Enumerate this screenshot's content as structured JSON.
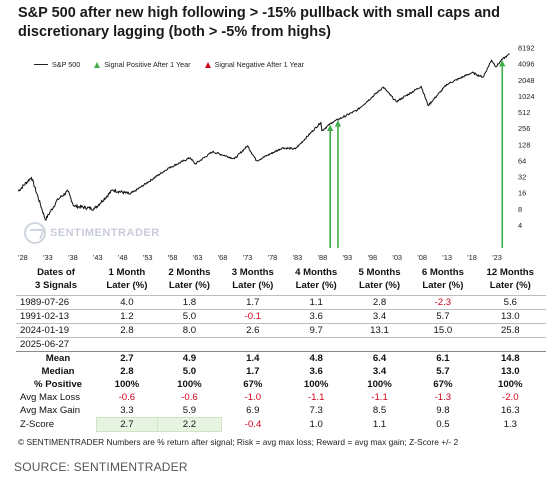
{
  "title": "S&P 500 after new high following > -15% pullback with small caps and discretionary lagging (both > -5% from highs)",
  "legend": {
    "sp500_label": "S&P 500",
    "positive_label": "Signal Positive After 1 Year",
    "negative_label": "Signal Negative After 1 Year",
    "positive_color": "#3fae49",
    "negative_color": "#d0021b",
    "line_color": "#111111"
  },
  "watermark": "SENTIMENTRADER",
  "chart_data": {
    "type": "line",
    "title": "S&P 500 after new high following > -15% pullback with small caps and discretionary lagging (both > -5% from highs)",
    "y_scale": "log2",
    "ylim": [
      2,
      10000
    ],
    "y_ticks": [
      "8192",
      "4096",
      "2048",
      "1024",
      "512",
      "256",
      "128",
      "64",
      "32",
      "16",
      "8",
      "4"
    ],
    "y_tick_values": [
      8192,
      4096,
      2048,
      1024,
      512,
      256,
      128,
      64,
      32,
      16,
      8,
      4
    ],
    "x_ticks": [
      "'28",
      "'33",
      "'38",
      "'43",
      "'48",
      "'53",
      "'58",
      "'63",
      "'68",
      "'73",
      "'78",
      "'83",
      "'88",
      "'93",
      "'98",
      "'03",
      "'08",
      "'13",
      "'18",
      "'23"
    ],
    "x_tick_years": [
      1928,
      1933,
      1938,
      1943,
      1948,
      1953,
      1958,
      1963,
      1968,
      1973,
      1978,
      1983,
      1988,
      1993,
      1998,
      2003,
      2008,
      2013,
      2018,
      2023
    ],
    "xlim": [
      1927,
      2026
    ],
    "series": [
      {
        "name": "S&P 500",
        "x": [
          1927,
          1929.7,
          1932.5,
          1935,
          1937,
          1938.2,
          1942.3,
          1946,
          1949.5,
          1953,
          1957,
          1961.5,
          1962.5,
          1966,
          1970.4,
          1973,
          1974.8,
          1980,
          1982.6,
          1987.7,
          1987.9,
          1990,
          1995,
          2000.2,
          2002.8,
          2007.8,
          2009.2,
          2013,
          2018,
          2020.2,
          2021.9,
          2022.8,
          2024,
          2025.5
        ],
        "y": [
          17,
          31,
          5,
          12,
          17,
          9,
          8,
          18,
          15,
          25,
          45,
          72,
          55,
          93,
          69,
          120,
          63,
          110,
          105,
          330,
          230,
          330,
          560,
          1500,
          800,
          1550,
          680,
          1700,
          2800,
          2300,
          4800,
          3600,
          4900,
          6200
        ]
      }
    ],
    "signals": [
      {
        "date": "1989-07-26",
        "year": 1989.57,
        "outcome": "positive"
      },
      {
        "date": "1991-02-13",
        "year": 1991.12,
        "outcome": "positive"
      },
      {
        "date": "2024-01-19",
        "year": 2024.05,
        "outcome": "positive"
      }
    ],
    "grid": false,
    "legend_position": "top-left"
  },
  "table": {
    "headers": [
      [
        "Dates of",
        "3 Signals"
      ],
      [
        "1 Month",
        "Later (%)"
      ],
      [
        "2 Months",
        "Later (%)"
      ],
      [
        "3 Months",
        "Later (%)"
      ],
      [
        "4 Months",
        "Later (%)"
      ],
      [
        "5 Months",
        "Later (%)"
      ],
      [
        "6 Months",
        "Later (%)"
      ],
      [
        "12 Months",
        "Later (%)"
      ]
    ],
    "rows": [
      {
        "label": "1989-07-26",
        "values": [
          "4.0",
          "1.8",
          "1.7",
          "1.1",
          "2.8",
          "-2.3",
          "5.6"
        ]
      },
      {
        "label": "1991-02-13",
        "values": [
          "1.2",
          "5.0",
          "-0.1",
          "3.6",
          "3.4",
          "5.7",
          "13.0"
        ]
      },
      {
        "label": "2024-01-19",
        "values": [
          "2.8",
          "8.0",
          "2.6",
          "9.7",
          "13.1",
          "15.0",
          "25.8"
        ]
      },
      {
        "label": "2025-06-27",
        "values": [
          "",
          "",
          "",
          "",
          "",
          "",
          ""
        ]
      }
    ],
    "summary": [
      {
        "label": "Mean",
        "values": [
          "2.7",
          "4.9",
          "1.4",
          "4.8",
          "6.4",
          "6.1",
          "14.8"
        ],
        "bold": true
      },
      {
        "label": "Median",
        "values": [
          "2.8",
          "5.0",
          "1.7",
          "3.6",
          "3.4",
          "5.7",
          "13.0"
        ],
        "bold": true
      },
      {
        "label": "% Positive",
        "values": [
          "100%",
          "100%",
          "67%",
          "100%",
          "100%",
          "67%",
          "100%"
        ],
        "bold": true
      },
      {
        "label": "Avg Max Loss",
        "values": [
          "-0.6",
          "-0.6",
          "-1.0",
          "-1.1",
          "-1.1",
          "-1.3",
          "-2.0"
        ],
        "bold": false
      },
      {
        "label": "Avg Max Gain",
        "values": [
          "3.3",
          "5.9",
          "6.9",
          "7.3",
          "8.5",
          "9.8",
          "16.3"
        ],
        "bold": false
      },
      {
        "label": "Z-Score",
        "values": [
          "2.7",
          "2.2",
          "-0.4",
          "1.0",
          "1.1",
          "0.5",
          "1.3"
        ],
        "bold": false
      }
    ]
  },
  "footnote": "© SENTIMENTRADER  Numbers are % return after signal; Risk = avg max loss; Reward = avg max gain; Z-Score +/- 2",
  "source": "SOURCE: SENTIMENTRADER"
}
